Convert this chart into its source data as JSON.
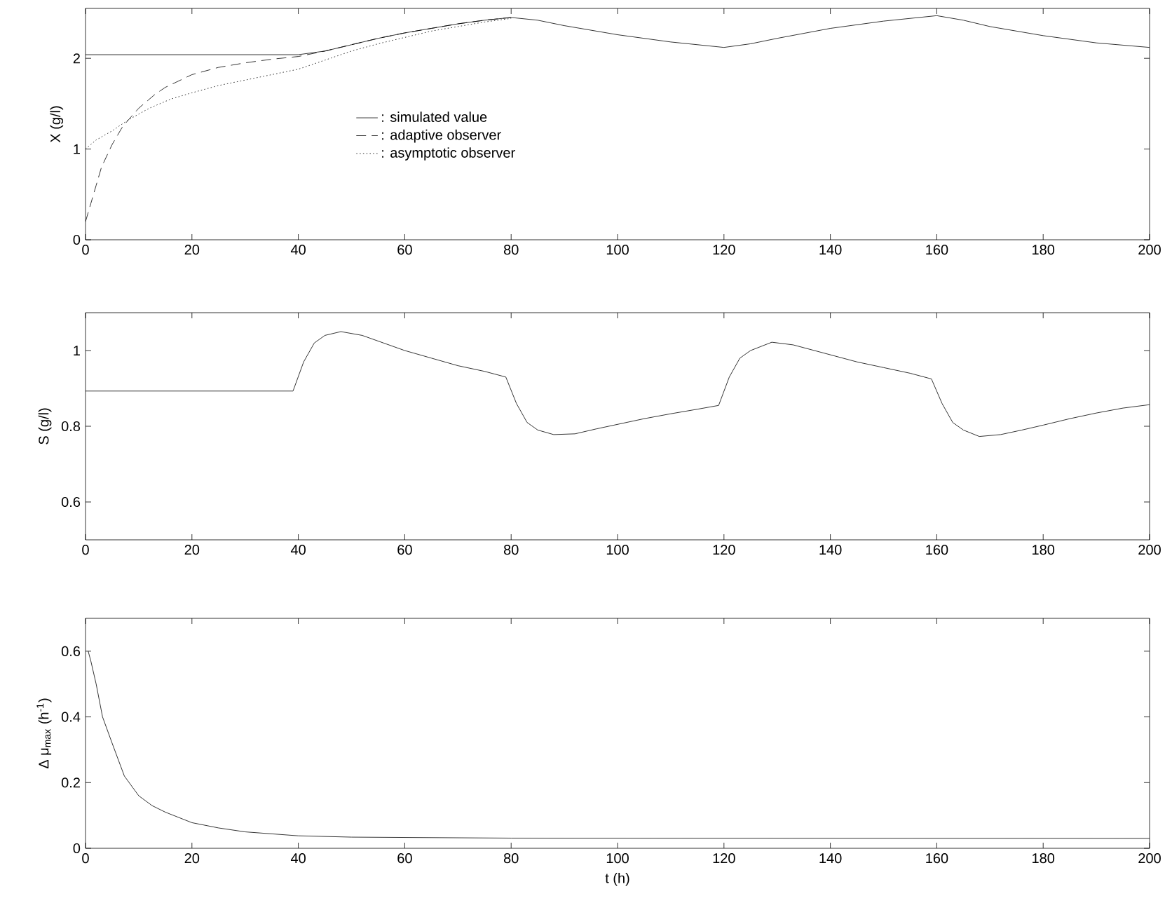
{
  "chart_data": [
    {
      "type": "line",
      "ylabel": "X (g/l)",
      "xlim": [
        0,
        200
      ],
      "ylim": [
        0,
        2.55
      ],
      "xticks": [
        0,
        20,
        40,
        60,
        80,
        100,
        120,
        140,
        160,
        180,
        200
      ],
      "yticks": [
        0,
        1,
        2
      ],
      "legend": "center",
      "series": [
        {
          "name": ": simulated value",
          "color": "#000000",
          "line_style": "solid",
          "x": [
            0,
            40,
            45,
            50,
            55,
            60,
            65,
            70,
            75,
            80,
            85,
            90,
            100,
            110,
            120,
            125,
            130,
            140,
            150,
            160,
            165,
            170,
            180,
            190,
            200
          ],
          "values": [
            2.04,
            2.04,
            2.08,
            2.15,
            2.22,
            2.28,
            2.33,
            2.38,
            2.42,
            2.45,
            2.42,
            2.36,
            2.26,
            2.18,
            2.12,
            2.16,
            2.22,
            2.33,
            2.41,
            2.47,
            2.42,
            2.35,
            2.25,
            2.17,
            2.12
          ]
        },
        {
          "name": ": adaptive observer",
          "color": "#000000",
          "line_style": "dashed",
          "x": [
            0,
            1,
            2,
            3,
            5,
            7,
            10,
            13,
            15,
            20,
            25,
            30,
            35,
            40,
            45,
            50,
            55,
            60,
            65,
            70,
            75,
            80
          ],
          "values": [
            0.2,
            0.4,
            0.6,
            0.8,
            1.05,
            1.25,
            1.45,
            1.6,
            1.68,
            1.82,
            1.9,
            1.95,
            1.99,
            2.02,
            2.08,
            2.15,
            2.22,
            2.28,
            2.33,
            2.38,
            2.42,
            2.45
          ]
        },
        {
          "name": ": asymptotic observer",
          "color": "#000000",
          "line_style": "dotted",
          "x": [
            0,
            2,
            5,
            8,
            12,
            16,
            20,
            25,
            30,
            35,
            40,
            45,
            50,
            55,
            60,
            65,
            70,
            75,
            80
          ],
          "values": [
            1.0,
            1.1,
            1.2,
            1.32,
            1.45,
            1.55,
            1.62,
            1.7,
            1.76,
            1.82,
            1.88,
            1.98,
            2.08,
            2.16,
            2.23,
            2.3,
            2.35,
            2.4,
            2.44
          ]
        }
      ]
    },
    {
      "type": "line",
      "ylabel": "S (g/l)",
      "xlim": [
        0,
        200
      ],
      "ylim": [
        0.5,
        1.1
      ],
      "xticks": [
        0,
        20,
        40,
        60,
        80,
        100,
        120,
        140,
        160,
        180,
        200
      ],
      "yticks": [
        0.6,
        0.8,
        1
      ],
      "series": [
        {
          "color": "#000000",
          "x": [
            0,
            39,
            41,
            43,
            45,
            48,
            52,
            56,
            60,
            65,
            70,
            75,
            79,
            81,
            83,
            85,
            88,
            92,
            96,
            100,
            105,
            110,
            115,
            119,
            121,
            123,
            125,
            129,
            133,
            137,
            141,
            145,
            150,
            155,
            159,
            161,
            163,
            165,
            168,
            172,
            176,
            180,
            185,
            190,
            195,
            200
          ],
          "values": [
            0.893,
            0.893,
            0.97,
            1.02,
            1.04,
            1.05,
            1.04,
            1.02,
            1.0,
            0.98,
            0.96,
            0.945,
            0.93,
            0.86,
            0.81,
            0.79,
            0.778,
            0.78,
            0.793,
            0.805,
            0.82,
            0.833,
            0.845,
            0.855,
            0.93,
            0.98,
            1.0,
            1.022,
            1.015,
            1.0,
            0.985,
            0.97,
            0.955,
            0.94,
            0.925,
            0.86,
            0.81,
            0.79,
            0.773,
            0.778,
            0.79,
            0.803,
            0.82,
            0.835,
            0.848,
            0.857
          ]
        }
      ]
    },
    {
      "type": "line",
      "ylabel": "Δ μ$_{max}$ (h$^{-1}$)",
      "xlabel": "t (h)",
      "xlim": [
        0,
        200
      ],
      "ylim": [
        0,
        0.7
      ],
      "xticks": [
        0,
        20,
        40,
        60,
        80,
        100,
        120,
        140,
        160,
        180,
        200
      ],
      "yticks": [
        0,
        0.2,
        0.4,
        0.6
      ],
      "series": [
        {
          "color": "#000000",
          "x": [
            0.5,
            1,
            2,
            3.2,
            5,
            7.3,
            10,
            12.5,
            15,
            20,
            25,
            30,
            40,
            50,
            80,
            200
          ],
          "values": [
            0.6,
            0.57,
            0.5,
            0.4,
            0.32,
            0.22,
            0.16,
            0.13,
            0.11,
            0.078,
            0.062,
            0.05,
            0.038,
            0.034,
            0.031,
            0.03
          ]
        }
      ]
    }
  ]
}
